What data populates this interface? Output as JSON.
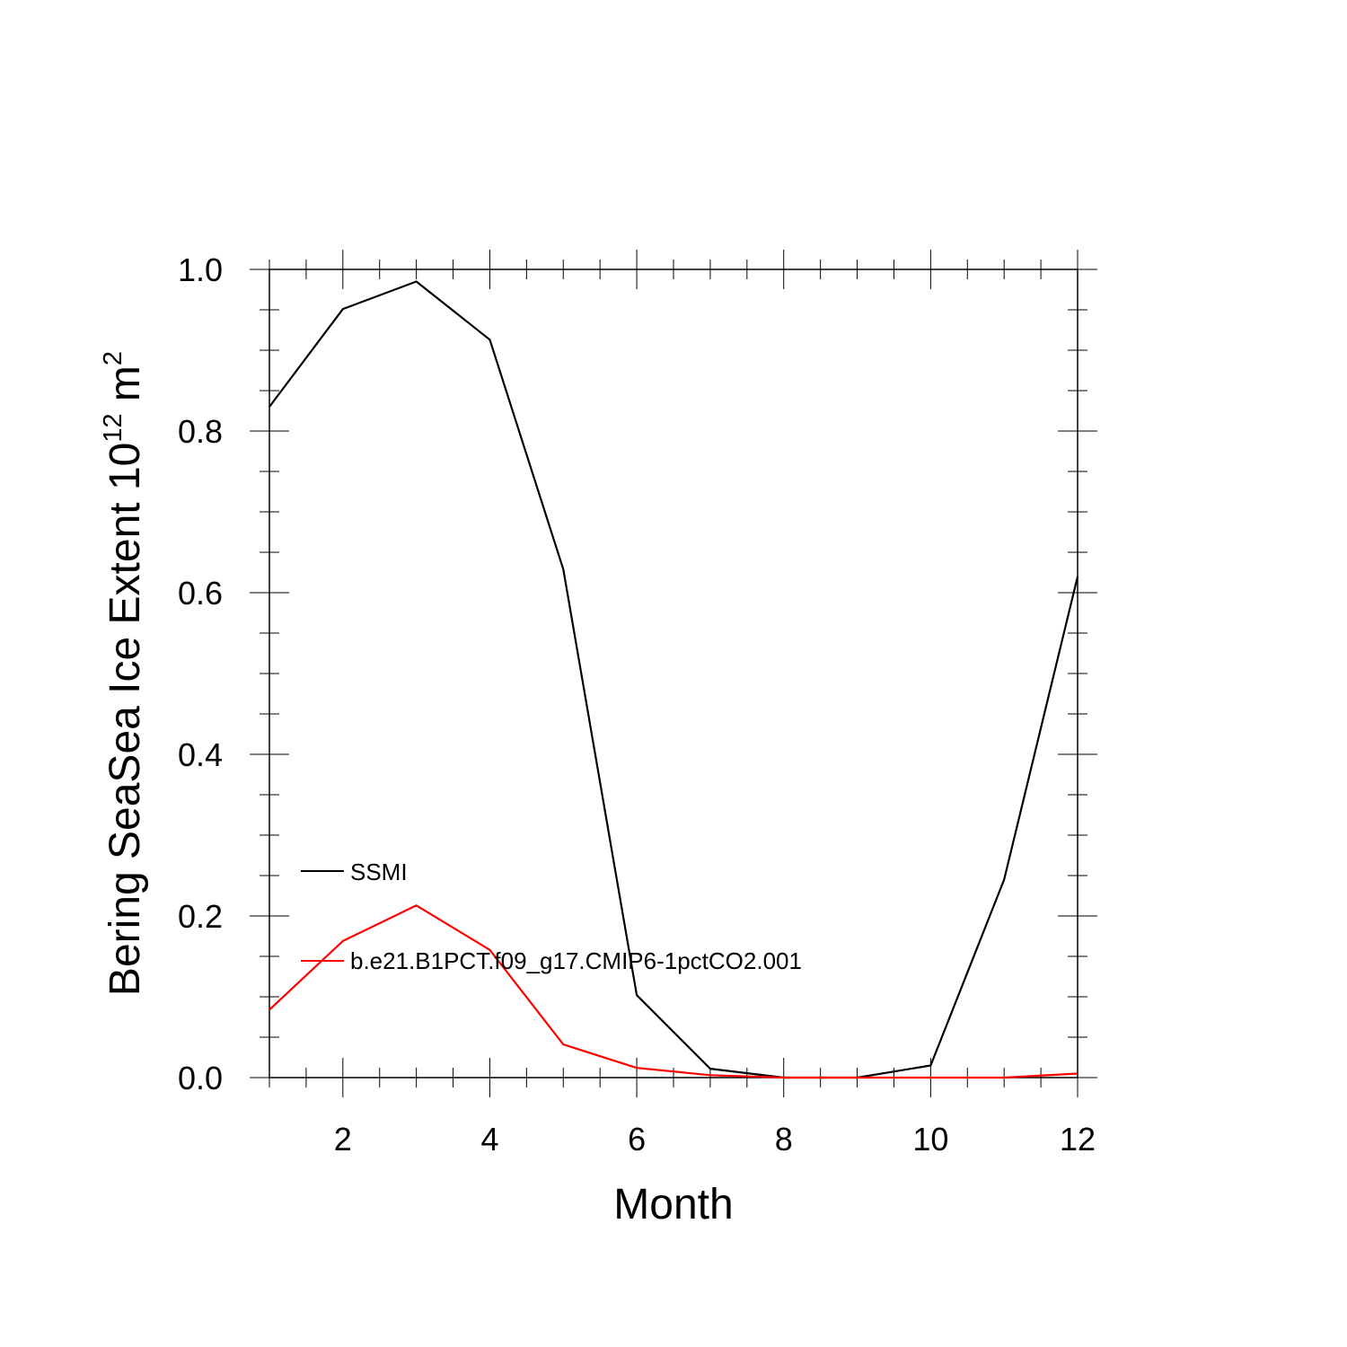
{
  "chart_data": {
    "type": "line",
    "title": "",
    "xlabel": "Month",
    "ylabel": {
      "main": "Bering SeaSea Ice Extent 10",
      "sup1": "12",
      "unit": " m",
      "sup2": "2"
    },
    "xlim": [
      1,
      12
    ],
    "ylim": [
      0,
      1.0
    ],
    "x_ticks": [
      2,
      4,
      6,
      8,
      10,
      12
    ],
    "x_tick_labels": [
      "2",
      "4",
      "6",
      "8",
      "10",
      "12"
    ],
    "y_ticks": [
      0,
      0.2,
      0.4,
      0.6,
      0.8,
      1.0
    ],
    "y_tick_labels": [
      "0.0",
      "0.2",
      "0.4",
      "0.6",
      "0.8",
      "1.0"
    ],
    "grid": false,
    "legend_position": "lower-left",
    "x": [
      1,
      2,
      3,
      4,
      5,
      6,
      7,
      8,
      9,
      10,
      11,
      12
    ],
    "series": [
      {
        "name": "SSMI",
        "color": "#000000",
        "values": [
          0.83,
          0.951,
          0.985,
          0.913,
          0.629,
          0.102,
          0.011,
          0.0,
          0.0,
          0.015,
          0.245,
          0.62
        ]
      },
      {
        "name": "b.e21.B1PCT.f09_g17.CMIP6-1pctCO2.001",
        "color": "#ff0000",
        "values": [
          0.084,
          0.169,
          0.213,
          0.158,
          0.041,
          0.012,
          0.003,
          0.0,
          0.0,
          0.0,
          0.0,
          0.005
        ]
      }
    ]
  }
}
